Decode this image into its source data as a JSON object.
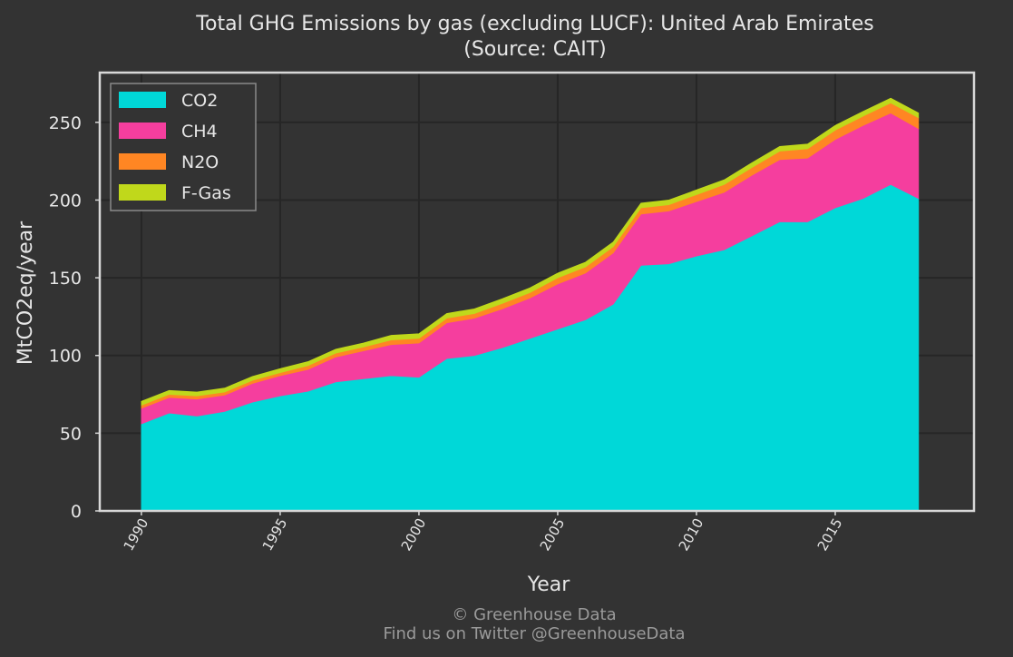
{
  "chart_data": {
    "type": "area",
    "stacked": true,
    "title": "Total GHG Emissions by gas (excluding LUCF): United Arab Emirates",
    "subtitle": "(Source: CAIT)",
    "xlabel": "Year",
    "ylabel": "MtCO2eq/year",
    "xlim": [
      1988.5,
      2020
    ],
    "ylim": [
      0,
      282
    ],
    "xticks": [
      1990,
      1995,
      2000,
      2005,
      2010,
      2015
    ],
    "yticks": [
      0,
      50,
      100,
      150,
      200,
      250
    ],
    "grid": true,
    "legend_position": "top-left",
    "x": [
      1990,
      1991,
      1992,
      1993,
      1994,
      1995,
      1996,
      1997,
      1998,
      1999,
      2000,
      2001,
      2002,
      2003,
      2004,
      2005,
      2006,
      2007,
      2008,
      2009,
      2010,
      2011,
      2012,
      2013,
      2014,
      2015,
      2016,
      2017,
      2018
    ],
    "series": [
      {
        "name": "CO2",
        "color": "#00d8d8",
        "values": [
          56,
          63,
          61,
          64,
          70,
          74,
          77,
          83,
          85,
          87,
          86,
          98,
          100,
          105,
          111,
          117,
          123,
          133,
          158,
          159,
          164,
          168,
          177,
          186,
          186,
          195,
          201,
          210,
          201
        ]
      },
      {
        "name": "CH4",
        "color": "#f53e9e",
        "values": [
          10,
          10,
          11,
          10.5,
          12,
          13,
          14,
          16,
          18,
          20,
          22,
          23,
          24,
          25,
          26,
          29,
          30,
          33,
          33,
          34,
          35,
          37,
          39,
          40,
          41,
          44,
          47,
          46,
          45
        ]
      },
      {
        "name": "N2O",
        "color": "#ff8623",
        "values": [
          2,
          2,
          2,
          2,
          2,
          2,
          2.5,
          2.5,
          2.5,
          3,
          3,
          3,
          3,
          3.5,
          3.5,
          4,
          4,
          4,
          4,
          4,
          4.5,
          5,
          5,
          5.5,
          6,
          6,
          6,
          6.5,
          7
        ]
      },
      {
        "name": "F-Gas",
        "color": "#c0d81b",
        "values": [
          2.5,
          2.5,
          2.5,
          2.5,
          2.5,
          2.5,
          2.5,
          2.5,
          2.5,
          3,
          3,
          3,
          3,
          3,
          3,
          3,
          3,
          3,
          3,
          3,
          3,
          3,
          3,
          3,
          3,
          3,
          3,
          3,
          3
        ]
      }
    ]
  },
  "footer": {
    "line1": "© Greenhouse Data",
    "line2": "Find us on Twitter @GreenhouseData"
  },
  "colors": {
    "background": "#333333",
    "plot_background": "#333333",
    "grid": "#262626",
    "frame": "#d8d8d8",
    "text": "#e6e6e6",
    "footer_text": "#9a9a9a"
  }
}
